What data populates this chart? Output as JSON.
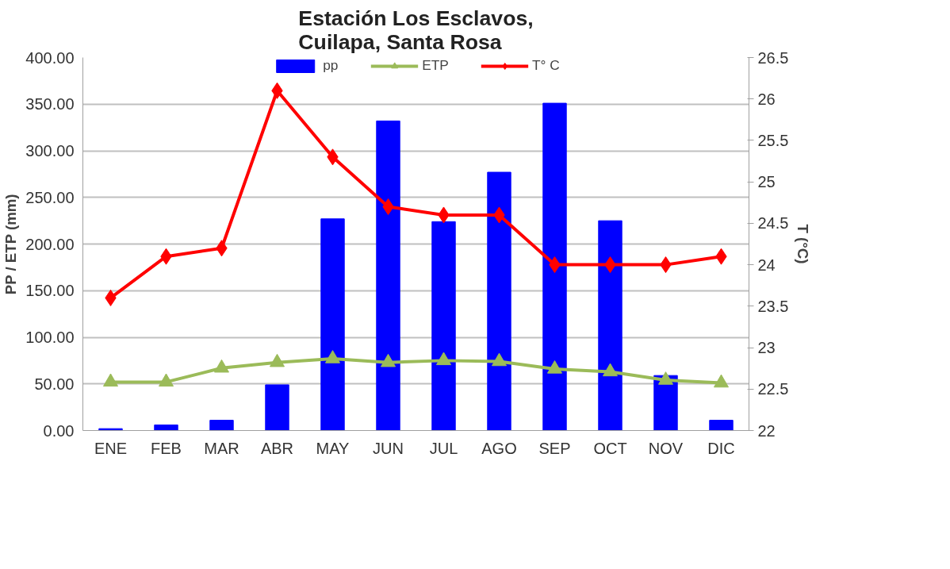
{
  "chart_data": {
    "type": "bar",
    "title": "Estación Los Esclavos,\nCuilapa, Santa Rosa",
    "ylabel": "PP / ETP (mm)",
    "y2label": "T (°C)",
    "categories": [
      "ENE",
      "FEB",
      "MAR",
      "ABR",
      "MAY",
      "JUN",
      "JUL",
      "AGO",
      "SEP",
      "OCT",
      "NOV",
      "DIC"
    ],
    "series": [
      {
        "name": "pp",
        "color": "#0000ff",
        "values": [
          2,
          6,
          11,
          49,
          227,
          332,
          224,
          277,
          351,
          225,
          59,
          11
        ]
      },
      {
        "name": "ETP",
        "type": "line",
        "color": "#9bbb59",
        "marker": "triangle",
        "values": [
          52,
          52,
          67,
          73,
          77,
          73,
          75,
          74,
          66,
          63,
          54,
          51
        ]
      },
      {
        "name": "T° C",
        "type": "line",
        "color": "#ff0000",
        "marker": "diamond",
        "axis": "y2",
        "values": [
          23.6,
          24.1,
          24.2,
          26.1,
          25.3,
          24.7,
          24.6,
          24.6,
          24.0,
          24.0,
          24.0,
          24.1
        ]
      }
    ],
    "ylim": [
      0,
      400
    ],
    "yticks": [
      {
        "value": 0,
        "label": "0.00"
      },
      {
        "value": 50,
        "label": "50.00"
      },
      {
        "value": 100,
        "label": "100.00"
      },
      {
        "value": 150,
        "label": "150.00"
      },
      {
        "value": 200,
        "label": "200.00"
      },
      {
        "value": 250,
        "label": "250.00"
      },
      {
        "value": 300,
        "label": "300.00"
      },
      {
        "value": 350,
        "label": "350.00"
      },
      {
        "value": 400,
        "label": "400.00"
      }
    ],
    "y2lim": [
      22,
      26.5
    ],
    "y2ticks": [
      22,
      22.5,
      23,
      23.5,
      24,
      24.5,
      25,
      25.5,
      26,
      26.5
    ],
    "grid": "y",
    "legend": "top",
    "line_style": "solid"
  }
}
